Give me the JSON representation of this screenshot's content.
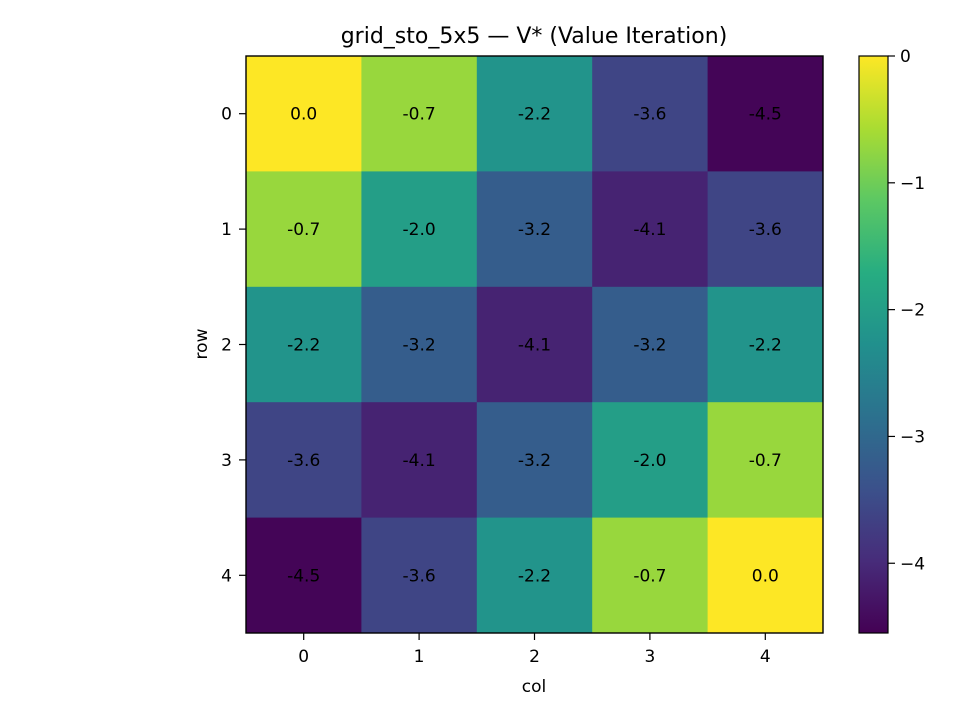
{
  "chart_data": {
    "type": "heatmap",
    "title": "grid_sto_5x5 — V* (Value Iteration)",
    "xlabel": "col",
    "ylabel": "row",
    "x_categories": [
      "0",
      "1",
      "2",
      "3",
      "4"
    ],
    "y_categories": [
      "0",
      "1",
      "2",
      "3",
      "4"
    ],
    "values": [
      [
        0.0,
        -0.7,
        -2.2,
        -3.6,
        -4.5
      ],
      [
        -0.7,
        -2.0,
        -3.2,
        -4.1,
        -3.6
      ],
      [
        -2.2,
        -3.2,
        -4.1,
        -3.2,
        -2.2
      ],
      [
        -3.6,
        -4.1,
        -3.2,
        -2.0,
        -0.7
      ],
      [
        -4.5,
        -3.6,
        -2.2,
        -0.7,
        0.0
      ]
    ],
    "cell_labels": [
      [
        "0.0",
        "-0.7",
        "-2.2",
        "-3.6",
        "-4.5"
      ],
      [
        "-0.7",
        "-2.0",
        "-3.2",
        "-4.1",
        "-3.6"
      ],
      [
        "-2.2",
        "-3.2",
        "-4.1",
        "-3.2",
        "-2.2"
      ],
      [
        "-3.6",
        "-4.1",
        "-3.2",
        "-2.0",
        "-0.7"
      ],
      [
        "-4.5",
        "-3.6",
        "-2.2",
        "-0.7",
        "0.0"
      ]
    ],
    "colormap": "viridis",
    "vmin": -4.55,
    "vmax": 0.0,
    "colorbar": {
      "ticks": [
        0,
        -1,
        -2,
        -3,
        -4
      ],
      "tick_labels": [
        "0",
        "−1",
        "−2",
        "−3",
        "−4"
      ]
    },
    "grid": false,
    "legend": "none"
  }
}
